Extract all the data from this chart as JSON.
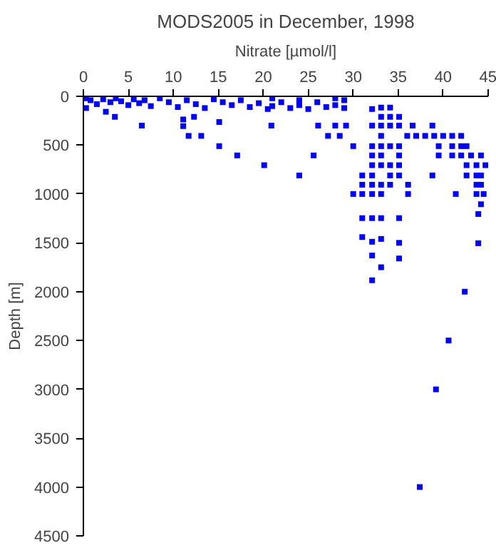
{
  "chart_data": {
    "type": "scatter",
    "title": "MODS2005 in December, 1998",
    "xlabel": "Nitrate [µmol/l]",
    "ylabel": "Depth [m]",
    "xlim": [
      0,
      45
    ],
    "xticks": [
      0,
      5,
      10,
      15,
      20,
      25,
      30,
      35,
      40,
      45
    ],
    "ylim": [
      4500,
      0
    ],
    "yticks": [
      0,
      500,
      1000,
      1500,
      2000,
      2500,
      3000,
      3500,
      4000,
      4500
    ],
    "grid": false,
    "marker": "square",
    "series": [
      {
        "color": "#0000ff",
        "x": [
          0.3,
          0.3,
          0.8,
          1.5,
          2.2,
          3.0,
          3.6,
          4.2,
          5.0,
          5.6,
          6.2,
          6.8,
          7.5,
          8.5,
          9.5,
          10.5,
          11.5,
          12.5,
          13.5,
          14.5,
          15.5,
          16.5,
          17.5,
          18.5,
          19.5,
          20.5,
          21.0,
          21.0,
          22.0,
          23.0,
          24.0,
          24.0,
          25.0,
          26.0,
          27.0,
          28.0,
          28.0,
          29.0,
          29.0,
          2.5,
          3.5,
          6.5,
          11.1,
          11.1,
          12.3,
          11.7,
          13.1,
          15.1,
          15.1,
          17.1,
          20.1,
          20.9,
          24.0,
          25.6,
          26.1,
          27.2,
          28.5,
          28.0,
          29.2,
          30.0,
          30.0,
          31.0,
          31.0,
          31.0,
          31.0,
          31.0,
          32.1,
          32.1,
          32.1,
          32.1,
          32.1,
          32.1,
          32.1,
          32.1,
          32.1,
          32.1,
          32.1,
          32.1,
          33.1,
          33.1,
          33.1,
          33.1,
          33.1,
          33.1,
          33.1,
          33.1,
          33.1,
          33.1,
          33.1,
          33.1,
          34.1,
          34.1,
          34.1,
          34.1,
          34.1,
          34.1,
          34.1,
          35.1,
          35.1,
          35.1,
          35.1,
          35.1,
          35.1,
          35.1,
          35.1,
          35.1,
          36.1,
          36.1,
          36.6,
          36.0,
          37.0,
          38.0,
          39.0,
          40.0,
          41.0,
          42.0,
          38.8,
          38.8,
          39.5,
          39.5,
          41.0,
          42.0,
          42.6,
          41.0,
          42.0,
          43.1,
          44.2,
          42.6,
          43.7,
          44.7,
          42.6,
          43.7,
          44.2,
          43.7,
          44.2,
          41.4,
          43.7,
          44.5,
          44.2,
          43.9,
          43.9,
          42.4,
          40.6,
          39.2,
          37.4
        ],
        "values": [
          20,
          120,
          40,
          80,
          30,
          60,
          20,
          50,
          90,
          30,
          70,
          40,
          100,
          20,
          60,
          110,
          40,
          80,
          120,
          30,
          60,
          90,
          40,
          110,
          70,
          130,
          20,
          100,
          60,
          120,
          40,
          90,
          130,
          60,
          110,
          20,
          90,
          40,
          120,
          158,
          210,
          300,
          237,
          305,
          210,
          405,
          405,
          263,
          510,
          605,
          705,
          300,
          810,
          605,
          300,
          405,
          405,
          300,
          300,
          510,
          1000,
          810,
          905,
          1000,
          1247,
          1441,
          130,
          300,
          510,
          605,
          705,
          810,
          905,
          1000,
          1247,
          1489,
          1630,
          1883,
          115,
          210,
          300,
          405,
          510,
          605,
          705,
          905,
          1000,
          1247,
          1460,
          1750,
          115,
          210,
          300,
          510,
          705,
          810,
          905,
          210,
          300,
          510,
          605,
          705,
          810,
          1247,
          1500,
          1660,
          905,
          1000,
          300,
          405,
          405,
          405,
          405,
          405,
          405,
          405,
          300,
          810,
          510,
          605,
          510,
          510,
          510,
          605,
          605,
          605,
          605,
          705,
          705,
          705,
          810,
          810,
          810,
          905,
          905,
          1000,
          1000,
          1000,
          1105,
          1205,
          1504,
          2000,
          2500,
          3000,
          4000
        ]
      }
    ]
  }
}
